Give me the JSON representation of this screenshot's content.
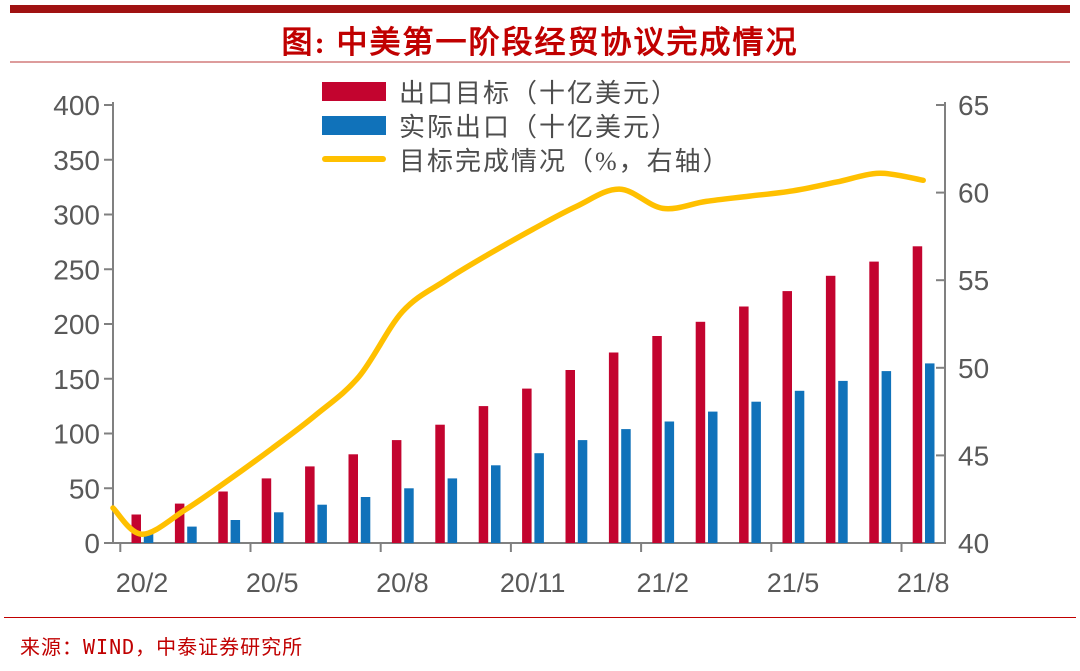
{
  "header": {
    "title": "图: 中美第一阶段经贸协议完成情况"
  },
  "footer": {
    "source_label": "来源：WIND，中泰证券研究所"
  },
  "colors": {
    "header_bar": "#A01212",
    "title_red": "#C00000",
    "title_rule": "#DD9C9C",
    "source_rule": "#C00000",
    "axis_line": "#808080",
    "axis_text": "#595959",
    "target_red": "#C3042F",
    "actual_blue": "#1072BA",
    "completion_yellow": "#FFC000"
  },
  "chart_data": {
    "type": "bar",
    "subtype": "clustered bars with secondary-axis line",
    "title": "图: 中美第一阶段经贸协议完成情况",
    "categories": [
      "20/2",
      "20/3",
      "20/4",
      "20/5",
      "20/6",
      "20/7",
      "20/8",
      "20/9",
      "20/10",
      "20/11",
      "20/12",
      "21/1",
      "21/2",
      "21/3",
      "21/4",
      "21/5",
      "21/6",
      "21/7",
      "21/8"
    ],
    "series": [
      {
        "name": "出口目标（十亿美元）",
        "type": "bar",
        "axis": "left",
        "color_key": "target_red",
        "values": [
          26,
          36,
          47,
          59,
          70,
          81,
          94,
          108,
          125,
          141,
          158,
          174,
          189,
          202,
          216,
          230,
          244,
          257,
          271
        ]
      },
      {
        "name": "实际出口（十亿美元）",
        "type": "bar",
        "axis": "left",
        "color_key": "actual_blue",
        "values": [
          10,
          15,
          21,
          28,
          35,
          42,
          50,
          59,
          71,
          82,
          94,
          104,
          111,
          120,
          129,
          139,
          148,
          157,
          164
        ]
      },
      {
        "name": "目标完成情况（%，右轴）",
        "type": "line",
        "axis": "right",
        "color_key": "completion_yellow",
        "edge_start_value": 42.0,
        "values": [
          40.5,
          41.9,
          43.6,
          45.4,
          47.3,
          49.5,
          53.2,
          55.0,
          56.5,
          57.9,
          59.2,
          60.2,
          59.1,
          59.5,
          59.8,
          60.1,
          60.6,
          61.1,
          60.7
        ]
      }
    ],
    "left_axis": {
      "min": 0,
      "max": 400,
      "step": 50,
      "tick_labels": [
        "0",
        "50",
        "100",
        "150",
        "200",
        "250",
        "300",
        "350",
        "400"
      ]
    },
    "right_axis": {
      "min": 40,
      "max": 65,
      "step": 5,
      "tick_labels": [
        "40",
        "45",
        "50",
        "55",
        "60",
        "65"
      ]
    },
    "x_axis": {
      "tick_labels": [
        "20/2",
        "20/5",
        "20/8",
        "20/11",
        "21/2",
        "21/5",
        "21/8"
      ],
      "label_every": 3
    },
    "legend_position": "top-center",
    "grid": false
  }
}
